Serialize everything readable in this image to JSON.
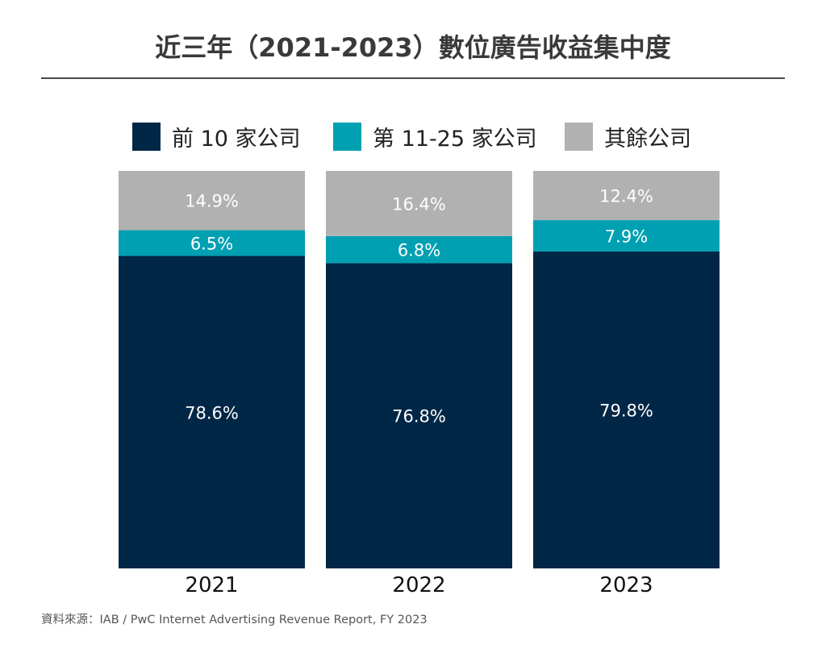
{
  "title": "近三年（2021-2023）數位廣告收益集中度",
  "source": "資料來源：IAB / PwC Internet Advertising Revenue Report, FY 2023",
  "chart_data": {
    "type": "bar",
    "stacked": true,
    "percent_stacked": true,
    "title": "近三年（2021-2023）數位廣告收益集中度",
    "xlabel": "",
    "ylabel": "",
    "ylim": [
      0,
      100
    ],
    "grid": false,
    "legend_position": "top",
    "categories": [
      "2021",
      "2022",
      "2023"
    ],
    "series": [
      {
        "name": "前 10 家公司",
        "color": "#012747",
        "values": [
          78.6,
          76.8,
          79.8
        ],
        "labels": [
          "78.6%",
          "76.8%",
          "79.8%"
        ]
      },
      {
        "name": "第 11-25 家公司",
        "color": "#00a0b3",
        "values": [
          6.5,
          6.8,
          7.9
        ],
        "labels": [
          "6.5%",
          "6.8%",
          "7.9%"
        ]
      },
      {
        "name": "其餘公司",
        "color": "#b1b1b1",
        "values": [
          14.9,
          16.4,
          12.4
        ],
        "labels": [
          "14.9%",
          "16.4%",
          "12.4%"
        ]
      }
    ]
  }
}
